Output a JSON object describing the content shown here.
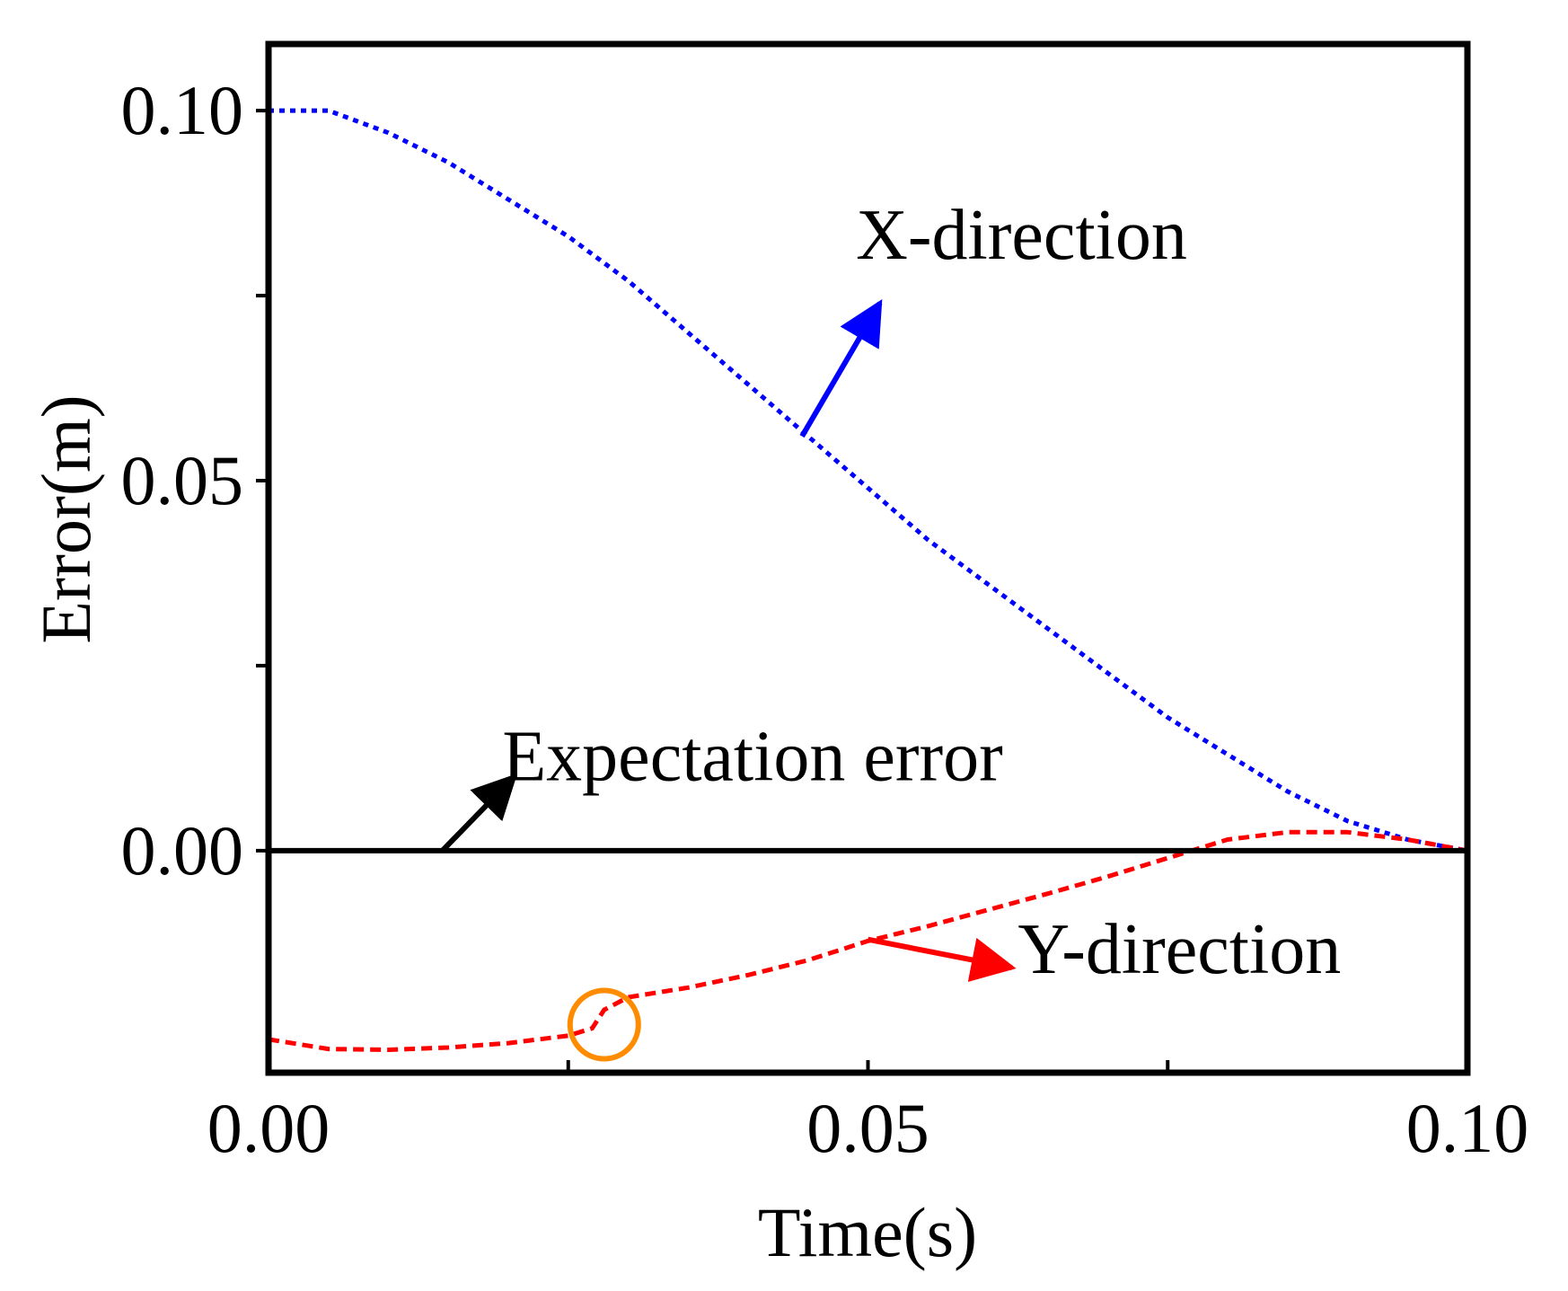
{
  "chart_data": {
    "type": "line",
    "title": "",
    "xlabel": "Time(s)",
    "ylabel": "Error(m)",
    "xlim": [
      0.0,
      0.1
    ],
    "ylim": [
      -0.03,
      0.109
    ],
    "x_ticks": [
      0.0,
      0.025,
      0.05,
      0.075,
      0.1
    ],
    "x_tick_labels": [
      "0.00",
      "",
      "0.05",
      "",
      "0.10"
    ],
    "y_ticks": [
      0.0,
      0.025,
      0.05,
      0.075,
      0.1
    ],
    "y_tick_labels": [
      "0.00",
      "",
      "0.05",
      "",
      "0.10"
    ],
    "grid": false,
    "legend": "none",
    "series": [
      {
        "name": "X-direction",
        "color": "#0000ff",
        "style": "dotted",
        "x": [
          0.0,
          0.005,
          0.01,
          0.015,
          0.02,
          0.025,
          0.03,
          0.035,
          0.04,
          0.045,
          0.05,
          0.055,
          0.06,
          0.065,
          0.07,
          0.075,
          0.08,
          0.085,
          0.09,
          0.095,
          0.1
        ],
        "y": [
          0.1,
          0.1,
          0.097,
          0.093,
          0.088,
          0.083,
          0.077,
          0.07,
          0.063,
          0.056,
          0.049,
          0.042,
          0.036,
          0.03,
          0.024,
          0.018,
          0.013,
          0.008,
          0.004,
          0.0015,
          0.0
        ]
      },
      {
        "name": "Y-direction",
        "color": "#ff0000",
        "style": "dashed",
        "x": [
          0.0,
          0.005,
          0.01,
          0.015,
          0.02,
          0.025,
          0.027,
          0.028,
          0.03,
          0.035,
          0.04,
          0.045,
          0.05,
          0.055,
          0.06,
          0.065,
          0.07,
          0.075,
          0.08,
          0.085,
          0.09,
          0.095,
          0.1
        ],
        "y": [
          -0.0255,
          -0.0268,
          -0.0269,
          -0.0266,
          -0.026,
          -0.025,
          -0.024,
          -0.0215,
          -0.0198,
          -0.0185,
          -0.0168,
          -0.0148,
          -0.0122,
          -0.0102,
          -0.008,
          -0.0058,
          -0.0035,
          -0.001,
          0.0015,
          0.0025,
          0.0025,
          0.0015,
          0.0
        ]
      },
      {
        "name": "Expectation error",
        "color": "#000000",
        "style": "solid",
        "x": [
          0.0,
          0.1
        ],
        "y": [
          0.0,
          0.0
        ]
      }
    ],
    "annotations": [
      {
        "text": "X-direction",
        "color": "#0000ff",
        "arrow_from": [
          0.0445,
          0.056
        ],
        "arrow_to": [
          0.051,
          0.074
        ],
        "text_at": [
          0.049,
          0.08
        ]
      },
      {
        "text": "Expectation error",
        "color": "#000000",
        "arrow_from": [
          0.0145,
          0.0
        ],
        "arrow_to": [
          0.0205,
          0.01
        ],
        "text_at": [
          0.0195,
          0.0095
        ]
      },
      {
        "text": "Y-direction",
        "color": "#ff0000",
        "arrow_from": [
          0.05,
          -0.012
        ],
        "arrow_to": [
          0.062,
          -0.0158
        ],
        "text_at": [
          0.0625,
          -0.0165
        ]
      }
    ],
    "highlight_circle": {
      "color": "#ff8c00",
      "center": [
        0.028,
        -0.0235
      ]
    }
  }
}
